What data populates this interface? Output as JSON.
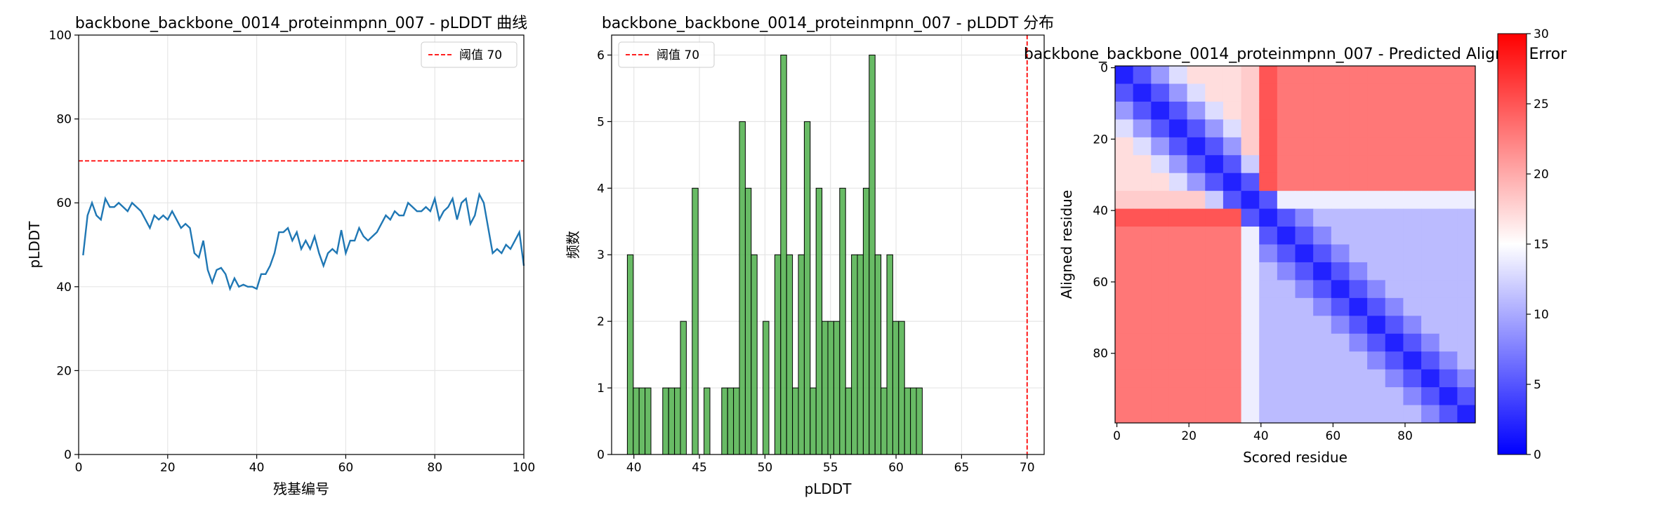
{
  "chart_data": [
    {
      "type": "line",
      "title": "backbone_backbone_0014_proteinmpnn_007 - pLDDT 曲线",
      "xlabel": "残基编号",
      "ylabel": "pLDDT",
      "x": [
        1,
        2,
        3,
        4,
        5,
        6,
        7,
        8,
        9,
        10,
        11,
        12,
        13,
        14,
        15,
        16,
        17,
        18,
        19,
        20,
        21,
        22,
        23,
        24,
        25,
        26,
        27,
        28,
        29,
        30,
        31,
        32,
        33,
        34,
        35,
        36,
        37,
        38,
        39,
        40,
        41,
        42,
        43,
        44,
        45,
        46,
        47,
        48,
        49,
        50,
        51,
        52,
        53,
        54,
        55,
        56,
        57,
        58,
        59,
        60,
        61,
        62,
        63,
        64,
        65,
        66,
        67,
        68,
        69,
        70,
        71,
        72,
        73,
        74,
        75,
        76,
        77,
        78,
        79,
        80,
        81,
        82,
        83,
        84,
        85,
        86,
        87,
        88,
        89,
        90,
        91,
        92,
        93,
        94,
        95,
        96,
        97,
        98,
        99,
        100
      ],
      "values": [
        47.5,
        57,
        60,
        57,
        56,
        61,
        59,
        59,
        60,
        59,
        58,
        60,
        59,
        58,
        56,
        54,
        57,
        56,
        57,
        56,
        58,
        56,
        54,
        55,
        54,
        48,
        47,
        51,
        44,
        41,
        44,
        44.5,
        43,
        39.5,
        42,
        40,
        40.5,
        40,
        40,
        39.5,
        43,
        43,
        45,
        48,
        53,
        53,
        54,
        51,
        53,
        49,
        51,
        49,
        52,
        48,
        45,
        48,
        49,
        48,
        53.5,
        48,
        51,
        51,
        54,
        52,
        51,
        52,
        53,
        55,
        57,
        56,
        58,
        57,
        57,
        60,
        59,
        58,
        58,
        59,
        58,
        61,
        56,
        58,
        59,
        61,
        56,
        60,
        61,
        55,
        57,
        62,
        60,
        54,
        48,
        49,
        48,
        50,
        49,
        51,
        53,
        45
      ],
      "color": "#1f77b4",
      "xlim": [
        0,
        100
      ],
      "ylim": [
        0,
        100
      ],
      "xticks": [
        0,
        20,
        40,
        60,
        80,
        100
      ],
      "yticks": [
        0,
        20,
        40,
        60,
        80,
        100
      ],
      "grid": true,
      "reference_line": {
        "name": "阈值 70",
        "value": 70,
        "color": "#ff0000",
        "axis": "y"
      },
      "legend": "upper right"
    },
    {
      "type": "histogram",
      "title": "backbone_backbone_0014_proteinmpnn_007 - pLDDT 分布",
      "xlabel": "pLDDT",
      "ylabel": "频数",
      "bins": [
        39.5,
        39.95,
        40.4,
        40.85,
        41.3,
        41.75,
        42.2,
        42.65,
        43.1,
        43.55,
        44,
        44.45,
        44.9,
        45.35,
        45.8,
        46.25,
        46.7,
        47.15,
        47.6,
        48.05,
        48.5,
        48.95,
        49.4,
        49.85,
        50.3,
        50.75,
        51.2,
        51.65,
        52.1,
        52.55,
        53,
        53.45,
        53.9,
        54.35,
        54.8,
        55.25,
        55.7,
        56.15,
        56.6,
        57.05,
        57.5,
        57.95,
        58.4,
        58.85,
        59.3,
        59.75,
        60.2,
        60.65,
        61.1,
        61.55,
        62
      ],
      "values": [
        3,
        1,
        1,
        1,
        0,
        0,
        1,
        1,
        1,
        2,
        0,
        4,
        0,
        1,
        0,
        0,
        1,
        1,
        1,
        5,
        4,
        3,
        0,
        2,
        0,
        3,
        6,
        3,
        1,
        3,
        5,
        1,
        4,
        2,
        2,
        2,
        4,
        1,
        3,
        3,
        4,
        6,
        3,
        1,
        3,
        2,
        2,
        1,
        1,
        1
      ],
      "color": "#4daf4a",
      "xlim": [
        38.3,
        71.3
      ],
      "ylim": [
        0,
        6.3
      ],
      "xticks": [
        40,
        45,
        50,
        55,
        60,
        65,
        70
      ],
      "yticks": [
        0,
        1,
        2,
        3,
        4,
        5,
        6
      ],
      "grid": true,
      "reference_line": {
        "name": "阈值 70",
        "value": 70,
        "color": "#ff0000",
        "axis": "x"
      },
      "legend": "upper left"
    },
    {
      "type": "heatmap",
      "title": "backbone_backbone_0014_proteinmpnn_007 - Predicted Aligned Error",
      "xlabel": "Scored residue",
      "ylabel": "Aligned residue",
      "xlim": [
        -0.5,
        99.5
      ],
      "ylim": [
        99.5,
        -0.5
      ],
      "xticks": [
        0,
        20,
        40,
        60,
        80
      ],
      "yticks": [
        0,
        20,
        40,
        60,
        80
      ],
      "zlim": [
        0,
        30
      ],
      "cticks": [
        0,
        5,
        10,
        15,
        20,
        25,
        30
      ],
      "colormap": "bwr",
      "z": [
        [
          2,
          5,
          9,
          13,
          17,
          17,
          17,
          18,
          25,
          23,
          23,
          23,
          23,
          23,
          23,
          23,
          23,
          23,
          23,
          23
        ],
        [
          5,
          2,
          5,
          9,
          13,
          17,
          17,
          18,
          25,
          23,
          23,
          23,
          23,
          23,
          23,
          23,
          23,
          23,
          23,
          23
        ],
        [
          9,
          5,
          2,
          5,
          9,
          13,
          17,
          18,
          25,
          23,
          23,
          23,
          23,
          23,
          23,
          23,
          23,
          23,
          23,
          23
        ],
        [
          13,
          9,
          5,
          2,
          5,
          9,
          13,
          18,
          25,
          23,
          23,
          23,
          23,
          23,
          23,
          23,
          23,
          23,
          23,
          23
        ],
        [
          17,
          13,
          9,
          5,
          2,
          5,
          9,
          18,
          25,
          23,
          23,
          23,
          23,
          23,
          23,
          23,
          23,
          23,
          23,
          23
        ],
        [
          17,
          17,
          13,
          9,
          5,
          2,
          5,
          12,
          25,
          23,
          23,
          23,
          23,
          23,
          23,
          23,
          23,
          23,
          23,
          23
        ],
        [
          17,
          17,
          17,
          13,
          9,
          5,
          2,
          5,
          25,
          23,
          23,
          23,
          23,
          23,
          23,
          23,
          23,
          23,
          23,
          23
        ],
        [
          18,
          18,
          18,
          18,
          18,
          12,
          5,
          2,
          5,
          14,
          14,
          14,
          14,
          14,
          14,
          14,
          14,
          14,
          14,
          14
        ],
        [
          25,
          25,
          25,
          25,
          25,
          25,
          25,
          5,
          2,
          5,
          8,
          11,
          11,
          11,
          11,
          11,
          11,
          11,
          11,
          11
        ],
        [
          23,
          23,
          23,
          23,
          23,
          23,
          23,
          14,
          5,
          2,
          5,
          8,
          11,
          11,
          11,
          11,
          11,
          11,
          11,
          11
        ],
        [
          23,
          23,
          23,
          23,
          23,
          23,
          23,
          14,
          8,
          5,
          2,
          5,
          8,
          11,
          11,
          11,
          11,
          11,
          11,
          11
        ],
        [
          23,
          23,
          23,
          23,
          23,
          23,
          23,
          14,
          11,
          8,
          5,
          2,
          5,
          8,
          11,
          11,
          11,
          11,
          11,
          11
        ],
        [
          23,
          23,
          23,
          23,
          23,
          23,
          23,
          14,
          11,
          11,
          8,
          5,
          2,
          5,
          8,
          11,
          11,
          11,
          11,
          11
        ],
        [
          23,
          23,
          23,
          23,
          23,
          23,
          23,
          14,
          11,
          11,
          11,
          8,
          5,
          2,
          5,
          8,
          11,
          11,
          11,
          11
        ],
        [
          23,
          23,
          23,
          23,
          23,
          23,
          23,
          14,
          11,
          11,
          11,
          11,
          8,
          5,
          2,
          5,
          8,
          11,
          11,
          11
        ],
        [
          23,
          23,
          23,
          23,
          23,
          23,
          23,
          14,
          11,
          11,
          11,
          11,
          11,
          8,
          5,
          2,
          5,
          8,
          11,
          11
        ],
        [
          23,
          23,
          23,
          23,
          23,
          23,
          23,
          14,
          11,
          11,
          11,
          11,
          11,
          11,
          8,
          5,
          2,
          5,
          8,
          11
        ],
        [
          23,
          23,
          23,
          23,
          23,
          23,
          23,
          14,
          11,
          11,
          11,
          11,
          11,
          11,
          11,
          8,
          5,
          2,
          5,
          8
        ],
        [
          23,
          23,
          23,
          23,
          23,
          23,
          23,
          14,
          11,
          11,
          11,
          11,
          11,
          11,
          11,
          11,
          8,
          5,
          2,
          5
        ],
        [
          23,
          23,
          23,
          23,
          23,
          23,
          23,
          14,
          11,
          11,
          11,
          11,
          11,
          11,
          11,
          11,
          11,
          8,
          5,
          2
        ]
      ]
    }
  ]
}
